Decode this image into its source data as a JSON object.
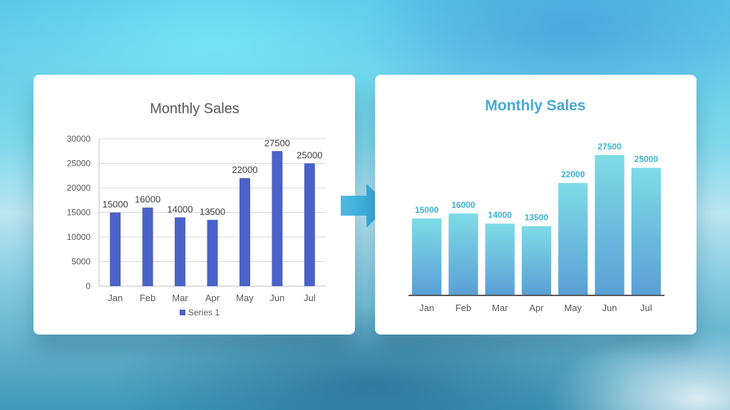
{
  "chart_data": [
    {
      "type": "bar",
      "title": "Monthly Sales",
      "categories": [
        "Jan",
        "Feb",
        "Mar",
        "Apr",
        "May",
        "Jun",
        "Jul"
      ],
      "series": [
        {
          "name": "Series 1",
          "values": [
            15000,
            16000,
            14000,
            13500,
            22000,
            27500,
            25000
          ]
        }
      ],
      "ylim": [
        0,
        30000
      ],
      "yticks": [
        "0",
        "5000",
        "10000",
        "15000",
        "20000",
        "25000",
        "30000"
      ],
      "grid": true,
      "legend": "bottom",
      "bar_color": "#4a62c6"
    },
    {
      "type": "bar",
      "title": "Monthly Sales",
      "categories": [
        "Jan",
        "Feb",
        "Mar",
        "Apr",
        "May",
        "Jun",
        "Jul"
      ],
      "series": [
        {
          "values": [
            15000,
            16000,
            14000,
            13500,
            22000,
            27500,
            25000
          ]
        }
      ],
      "ylim": [
        0,
        30000
      ],
      "grid": false,
      "legend": "none",
      "bar_gradient": [
        "#7edbe6",
        "#5aa0d6"
      ],
      "label_color": "#3fb1d6"
    }
  ],
  "arrow_icon": "right-arrow-icon"
}
